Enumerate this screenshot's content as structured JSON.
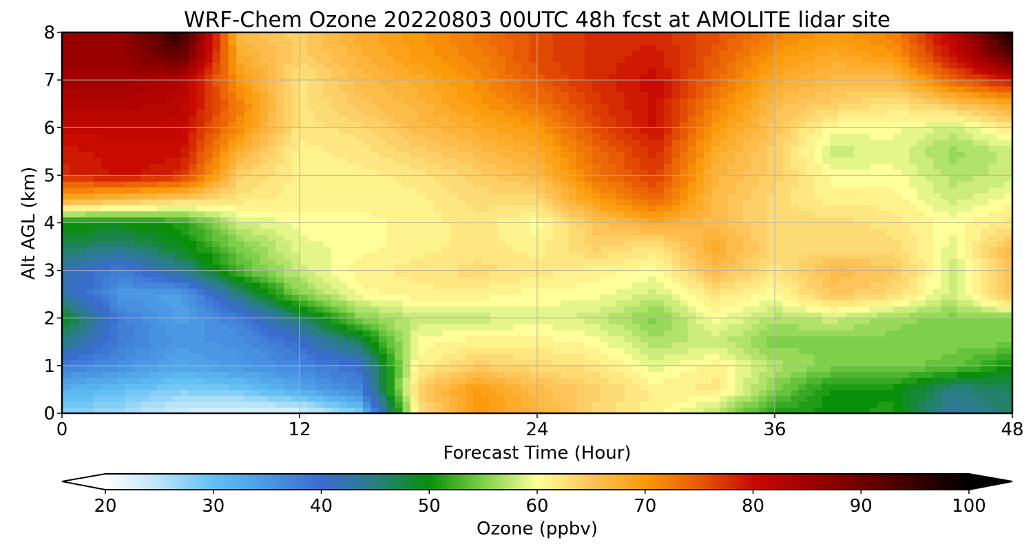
{
  "chart_data": {
    "type": "heatmap",
    "title": "WRF-Chem Ozone  20220803 00UTC 48h fcst at AMOLITE lidar site",
    "xlabel": "Forecast Time (Hour)",
    "ylabel": "Alt AGL (km)",
    "xlim": [
      0,
      48
    ],
    "ylim": [
      0,
      8
    ],
    "xticks": [
      0,
      12,
      24,
      36,
      48
    ],
    "yticks": [
      0,
      1,
      2,
      3,
      4,
      5,
      6,
      7,
      8
    ],
    "grid": true,
    "x": [
      0,
      3,
      6,
      9,
      12,
      15,
      18,
      21,
      24,
      27,
      30,
      33,
      36,
      39,
      42,
      45,
      48
    ],
    "y": [
      0,
      0.5,
      1,
      1.5,
      2,
      2.5,
      3,
      3.5,
      4,
      4.5,
      5,
      5.5,
      6,
      6.5,
      7,
      7.5,
      8
    ],
    "z": [
      [
        28,
        26,
        23,
        22,
        22,
        28,
        62,
        70,
        67,
        63,
        61,
        57,
        51,
        50,
        51,
        43,
        46
      ],
      [
        32,
        30,
        28,
        29,
        33,
        37,
        64,
        70,
        66,
        64,
        61,
        62,
        55,
        50,
        50,
        45,
        47
      ],
      [
        38,
        36,
        33,
        35,
        37,
        40,
        61,
        64,
        63,
        62,
        59,
        61,
        57,
        55,
        55,
        54,
        50
      ],
      [
        45,
        38,
        35,
        36,
        40,
        47,
        60,
        61,
        61,
        60,
        57,
        58,
        55,
        55,
        55,
        55,
        55
      ],
      [
        50,
        38,
        34,
        38,
        46,
        55,
        58,
        58,
        59,
        58,
        55,
        60,
        57,
        58,
        56,
        55,
        55
      ],
      [
        43,
        35,
        34,
        45,
        55,
        60,
        61,
        61,
        60,
        60,
        58,
        62,
        60,
        65,
        63,
        58,
        66
      ],
      [
        42,
        38,
        44,
        53,
        58,
        61,
        62,
        63,
        62,
        61,
        60,
        66,
        62,
        66,
        65,
        58,
        66
      ],
      [
        47,
        45,
        49,
        55,
        59,
        60,
        61,
        62,
        61,
        64,
        62,
        68,
        63,
        63,
        63,
        59,
        66
      ],
      [
        50,
        50,
        51,
        58,
        60,
        60,
        61,
        62,
        60,
        65,
        68,
        66,
        63,
        63,
        62,
        60,
        62
      ],
      [
        68,
        66,
        64,
        62,
        61,
        61,
        61,
        63,
        63,
        70,
        74,
        66,
        63,
        61,
        61,
        58,
        60
      ],
      [
        78,
        80,
        78,
        64,
        61,
        61,
        62,
        64,
        66,
        73,
        77,
        67,
        64,
        60,
        60,
        57,
        58
      ],
      [
        79,
        80,
        80,
        67,
        61,
        62,
        64,
        66,
        68,
        74,
        78,
        68,
        64,
        58,
        59,
        56,
        58
      ],
      [
        81,
        81,
        81,
        71,
        62,
        63,
        66,
        68,
        70,
        76,
        80,
        70,
        65,
        60,
        60,
        58,
        62
      ],
      [
        83,
        83,
        82,
        72,
        62,
        65,
        67,
        70,
        73,
        77,
        80,
        72,
        66,
        64,
        62,
        65,
        68
      ],
      [
        85,
        85,
        83,
        70,
        62,
        66,
        68,
        71,
        75,
        78,
        80,
        74,
        68,
        66,
        66,
        74,
        80
      ],
      [
        86,
        86,
        91,
        68,
        64,
        67,
        70,
        72,
        76,
        78,
        79,
        75,
        70,
        68,
        70,
        80,
        92
      ],
      [
        86,
        86,
        96,
        66,
        64,
        68,
        70,
        73,
        76,
        78,
        78,
        76,
        72,
        70,
        72,
        82,
        99
      ]
    ],
    "colorbar": {
      "label": "Ozone  (ppbv)",
      "min": 20,
      "max": 100,
      "ticks": [
        20,
        30,
        40,
        50,
        60,
        70,
        80,
        90,
        100
      ],
      "extend": "both",
      "color_stops": [
        [
          20,
          "#ffffff"
        ],
        [
          25,
          "#b8e4fa"
        ],
        [
          30,
          "#62c0f5"
        ],
        [
          35,
          "#4a98e3"
        ],
        [
          40,
          "#3a6ccf"
        ],
        [
          45,
          "#2a7e84"
        ],
        [
          50,
          "#0a8f0a"
        ],
        [
          55,
          "#7ed04a"
        ],
        [
          60,
          "#fefe9a"
        ],
        [
          65,
          "#fdc45a"
        ],
        [
          70,
          "#fb9a0a"
        ],
        [
          75,
          "#e85a05"
        ],
        [
          80,
          "#c80a00"
        ],
        [
          85,
          "#a20000"
        ],
        [
          90,
          "#700000"
        ],
        [
          95,
          "#3a0000"
        ],
        [
          100,
          "#000000"
        ]
      ]
    }
  }
}
